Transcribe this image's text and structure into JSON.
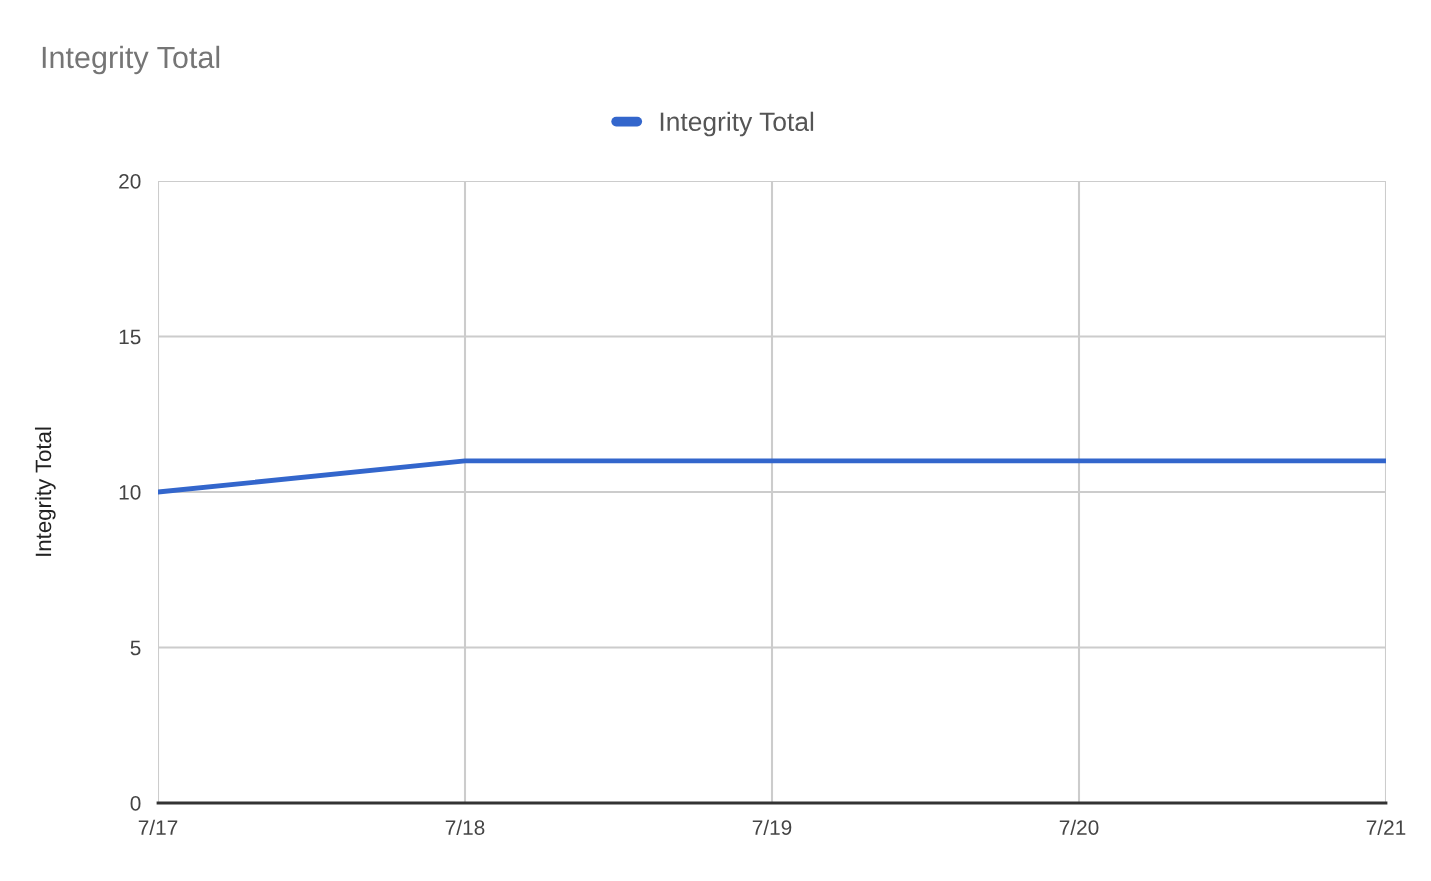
{
  "chart_data": {
    "type": "line",
    "title": "Integrity Total",
    "ylabel": "Integrity Total",
    "categories": [
      "7/17",
      "7/18",
      "7/19",
      "7/20",
      "7/21"
    ],
    "series": [
      {
        "name": "Integrity Total",
        "color": "#3366cc",
        "values": [
          10,
          11,
          11,
          11,
          11
        ]
      }
    ],
    "ylim": [
      0,
      20
    ],
    "yticks": [
      0,
      5,
      10,
      15,
      20
    ],
    "grid": true,
    "legend": "top",
    "marker": "none",
    "line_style": "solid"
  }
}
